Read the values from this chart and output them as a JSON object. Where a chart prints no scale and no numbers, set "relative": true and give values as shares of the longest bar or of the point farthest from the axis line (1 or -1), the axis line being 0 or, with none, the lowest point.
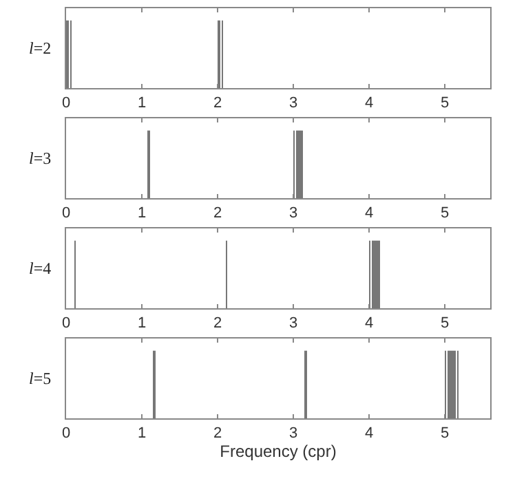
{
  "chart_data": [
    {
      "type": "bar",
      "relative": true,
      "ylabel": "l=2",
      "color": "#777777",
      "tick_labels": "x",
      "xlim": [
        0,
        5.6
      ],
      "xticks": [
        0,
        1,
        2,
        3,
        4,
        5
      ],
      "x": [
        0.02,
        0.06,
        2.02,
        2.06
      ],
      "values": [
        1,
        1,
        1,
        1
      ]
    },
    {
      "type": "bar",
      "relative": true,
      "ylabel": "l=3",
      "color": "#777777",
      "tick_labels": "x",
      "xlim": [
        0,
        5.6
      ],
      "xticks": [
        0,
        1,
        2,
        3,
        4,
        5
      ],
      "x": [
        1.09,
        3.01,
        3.05,
        3.09,
        3.12
      ],
      "values": [
        1,
        1,
        1,
        1,
        1
      ]
    },
    {
      "type": "bar",
      "relative": true,
      "ylabel": "l=4",
      "color": "#777777",
      "tick_labels": "x",
      "xlim": [
        0,
        5.6
      ],
      "xticks": [
        0,
        1,
        2,
        3,
        4,
        5
      ],
      "x": [
        0.12,
        2.12,
        4.01,
        4.05,
        4.09,
        4.13
      ],
      "values": [
        1,
        1,
        1,
        1,
        1,
        1
      ]
    },
    {
      "type": "bar",
      "relative": true,
      "ylabel": "l=5",
      "xlabel": "Frequency (cpr)",
      "color": "#777777",
      "tick_labels": "x",
      "xlim": [
        0,
        5.6
      ],
      "xticks": [
        0,
        1,
        2,
        3,
        4,
        5
      ],
      "x": [
        1.16,
        3.16,
        5.01,
        5.05,
        5.09,
        5.13,
        5.17
      ],
      "values": [
        1,
        1,
        1,
        1,
        1,
        1,
        1
      ]
    }
  ]
}
